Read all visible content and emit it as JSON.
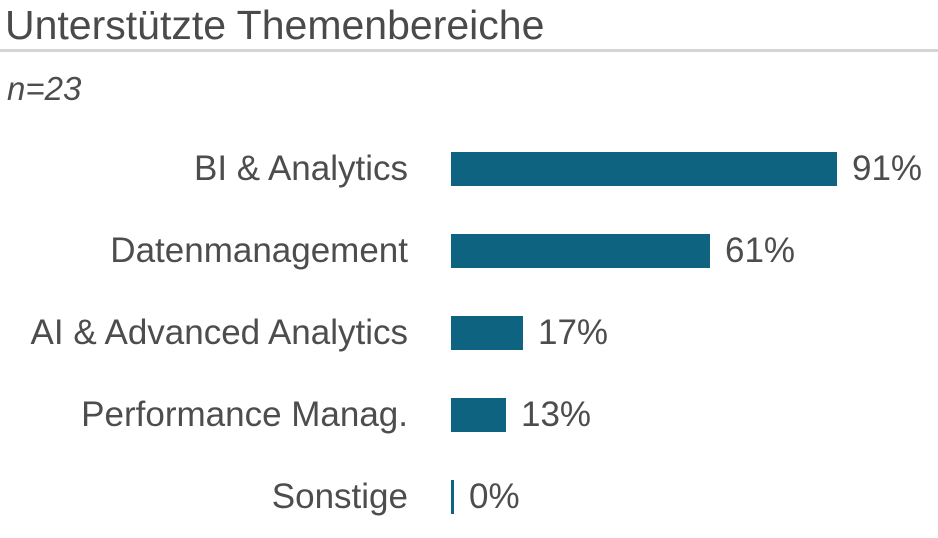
{
  "page": {
    "title": "Unterstützte Themenbereiche",
    "sample_note": "n=23"
  },
  "colors": {
    "bar": "#0e6480",
    "title_text": "#4a4a4a",
    "label_text": "#4d4d4d",
    "divider": "#d5d5d5",
    "background": "#ffffff"
  },
  "chart_data": {
    "type": "bar",
    "orientation": "horizontal",
    "title": "Unterstützte Themenbereiche",
    "subtitle": "n=23",
    "categories": [
      "BI & Analytics",
      "Datenmanagement",
      "AI & Advanced Analytics",
      "Performance Manag.",
      "Sonstige"
    ],
    "values": [
      91,
      61,
      17,
      13,
      0
    ],
    "value_labels": [
      "91%",
      "61%",
      "17%",
      "13%",
      "0%"
    ],
    "unit": "%",
    "xlim": [
      0,
      100
    ],
    "grid": false,
    "legend": false,
    "value_label_position": "outside-end"
  }
}
